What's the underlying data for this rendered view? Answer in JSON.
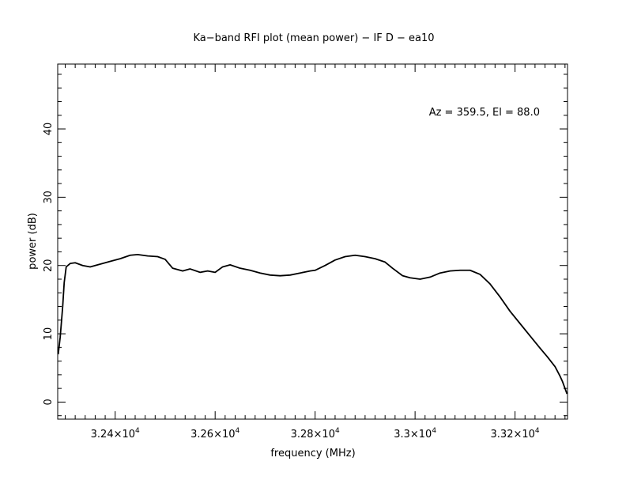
{
  "chart_data": {
    "type": "line",
    "title": "Ka−band RFI plot (mean power) − IF D − ea10",
    "xlabel": "frequency (MHz)",
    "ylabel": "power (dB)",
    "annotation": "Az = 359.5, El = 88.0",
    "xlim": [
      32285,
      33305
    ],
    "ylim": [
      -2.5,
      49.5
    ],
    "x_ticks": [
      {
        "value": 32400,
        "mantissa": "3.24",
        "exponent": "4"
      },
      {
        "value": 32600,
        "mantissa": "3.26",
        "exponent": "4"
      },
      {
        "value": 32800,
        "mantissa": "3.28",
        "exponent": "4"
      },
      {
        "value": 33000,
        "mantissa": "3.3",
        "exponent": "4"
      },
      {
        "value": 33200,
        "mantissa": "3.32",
        "exponent": "4"
      }
    ],
    "x_minor_step": 20,
    "y_ticks": [
      {
        "value": 0,
        "label": "0"
      },
      {
        "value": 10,
        "label": "10"
      },
      {
        "value": 20,
        "label": "20"
      },
      {
        "value": 30,
        "label": "30"
      },
      {
        "value": 40,
        "label": "40"
      }
    ],
    "y_minor_step": 2,
    "grid": false,
    "series": [
      {
        "color": "#000000",
        "x": [
          32286,
          32290,
          32295,
          32298,
          32302,
          32310,
          32320,
          32335,
          32350,
          32370,
          32390,
          32410,
          32430,
          32445,
          32465,
          32485,
          32500,
          32515,
          32535,
          32550,
          32570,
          32585,
          32600,
          32615,
          32630,
          32650,
          32670,
          32690,
          32710,
          32730,
          32750,
          32770,
          32790,
          32800,
          32820,
          32840,
          32860,
          32880,
          32900,
          32920,
          32940,
          32955,
          32975,
          32990,
          33010,
          33030,
          33050,
          33070,
          33090,
          33110,
          33130,
          33150,
          33170,
          33190,
          33210,
          33230,
          33250,
          33265,
          33280,
          33290,
          33295,
          33300,
          33304
        ],
        "y": [
          7.0,
          9.5,
          14.0,
          17.5,
          19.8,
          20.3,
          20.4,
          20.0,
          19.8,
          20.2,
          20.6,
          21.0,
          21.5,
          21.6,
          21.4,
          21.3,
          20.9,
          19.6,
          19.2,
          19.5,
          19.0,
          19.2,
          19.0,
          19.8,
          20.1,
          19.6,
          19.3,
          18.9,
          18.6,
          18.5,
          18.6,
          18.9,
          19.2,
          19.3,
          20.0,
          20.8,
          21.3,
          21.5,
          21.3,
          21.0,
          20.5,
          19.6,
          18.5,
          18.2,
          18.0,
          18.3,
          18.9,
          19.2,
          19.3,
          19.3,
          18.7,
          17.3,
          15.4,
          13.3,
          11.5,
          9.7,
          7.9,
          6.6,
          5.2,
          3.8,
          3.0,
          2.0,
          1.2
        ]
      }
    ]
  }
}
